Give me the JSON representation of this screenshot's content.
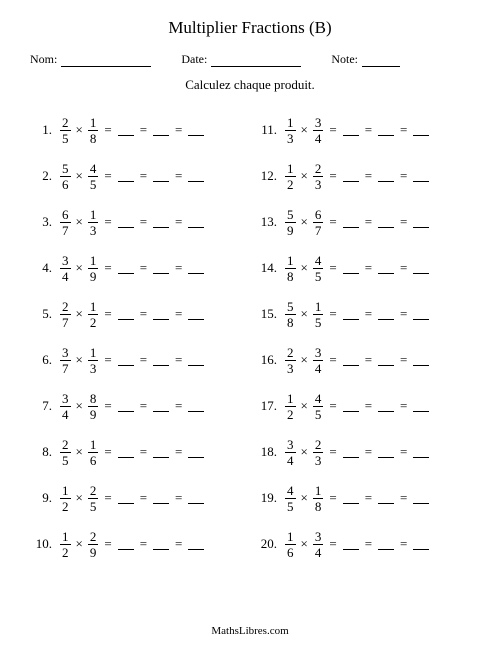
{
  "title": "Multiplier Fractions (B)",
  "meta": {
    "name_label": "Nom:",
    "date_label": "Date:",
    "note_label": "Note:"
  },
  "instruction": "Calculez chaque produit.",
  "columns": {
    "left": [
      {
        "idx": "1.",
        "a_n": "2",
        "a_d": "5",
        "b_n": "1",
        "b_d": "8"
      },
      {
        "idx": "2.",
        "a_n": "5",
        "a_d": "6",
        "b_n": "4",
        "b_d": "5"
      },
      {
        "idx": "3.",
        "a_n": "6",
        "a_d": "7",
        "b_n": "1",
        "b_d": "3"
      },
      {
        "idx": "4.",
        "a_n": "3",
        "a_d": "4",
        "b_n": "1",
        "b_d": "9"
      },
      {
        "idx": "5.",
        "a_n": "2",
        "a_d": "7",
        "b_n": "1",
        "b_d": "2"
      },
      {
        "idx": "6.",
        "a_n": "3",
        "a_d": "7",
        "b_n": "1",
        "b_d": "3"
      },
      {
        "idx": "7.",
        "a_n": "3",
        "a_d": "4",
        "b_n": "8",
        "b_d": "9"
      },
      {
        "idx": "8.",
        "a_n": "2",
        "a_d": "5",
        "b_n": "1",
        "b_d": "6"
      },
      {
        "idx": "9.",
        "a_n": "1",
        "a_d": "2",
        "b_n": "2",
        "b_d": "5"
      },
      {
        "idx": "10.",
        "a_n": "1",
        "a_d": "2",
        "b_n": "2",
        "b_d": "9"
      }
    ],
    "right": [
      {
        "idx": "11.",
        "a_n": "1",
        "a_d": "3",
        "b_n": "3",
        "b_d": "4"
      },
      {
        "idx": "12.",
        "a_n": "1",
        "a_d": "2",
        "b_n": "2",
        "b_d": "3"
      },
      {
        "idx": "13.",
        "a_n": "5",
        "a_d": "9",
        "b_n": "6",
        "b_d": "7"
      },
      {
        "idx": "14.",
        "a_n": "1",
        "a_d": "8",
        "b_n": "4",
        "b_d": "5"
      },
      {
        "idx": "15.",
        "a_n": "5",
        "a_d": "8",
        "b_n": "1",
        "b_d": "5"
      },
      {
        "idx": "16.",
        "a_n": "2",
        "a_d": "3",
        "b_n": "3",
        "b_d": "4"
      },
      {
        "idx": "17.",
        "a_n": "1",
        "a_d": "2",
        "b_n": "4",
        "b_d": "5"
      },
      {
        "idx": "18.",
        "a_n": "3",
        "a_d": "4",
        "b_n": "2",
        "b_d": "3"
      },
      {
        "idx": "19.",
        "a_n": "4",
        "a_d": "5",
        "b_n": "1",
        "b_d": "8"
      },
      {
        "idx": "20.",
        "a_n": "1",
        "a_d": "6",
        "b_n": "3",
        "b_d": "4"
      }
    ]
  },
  "symbols": {
    "times": "×",
    "equals": "="
  },
  "footer": "MathsLibres.com"
}
